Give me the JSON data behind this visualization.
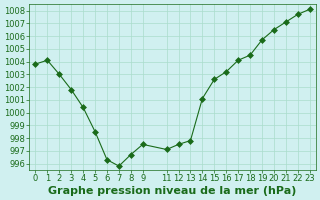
{
  "x": [
    0,
    1,
    2,
    3,
    4,
    5,
    6,
    7,
    8,
    9,
    11,
    12,
    13,
    14,
    15,
    16,
    17,
    18,
    19,
    20,
    21,
    22,
    23
  ],
  "y": [
    1003.8,
    1004.1,
    1003.0,
    1001.8,
    1000.4,
    998.5,
    996.3,
    995.8,
    996.7,
    997.5,
    997.1,
    997.5,
    997.8,
    1001.1,
    1002.6,
    1003.2,
    1004.1,
    1004.5,
    1005.7,
    1006.5,
    1007.1,
    1007.7,
    1008.1
  ],
  "line_color": "#1a6b1a",
  "marker": "D",
  "marker_size": 3,
  "bg_color": "#d0f0f0",
  "grid_color": "#aaddcc",
  "xlabel": "Graphe pression niveau de la mer (hPa)",
  "xlabel_fontsize": 8,
  "ylim": [
    995.5,
    1008.5
  ],
  "yticks": [
    996,
    997,
    998,
    999,
    1000,
    1001,
    1002,
    1003,
    1004,
    1005,
    1006,
    1007,
    1008
  ],
  "xticks": [
    0,
    1,
    2,
    3,
    4,
    5,
    6,
    7,
    8,
    9,
    11,
    12,
    13,
    14,
    15,
    16,
    17,
    18,
    19,
    20,
    21,
    22,
    23
  ],
  "tick_fontsize": 6,
  "axis_color": "#1a6b1a"
}
